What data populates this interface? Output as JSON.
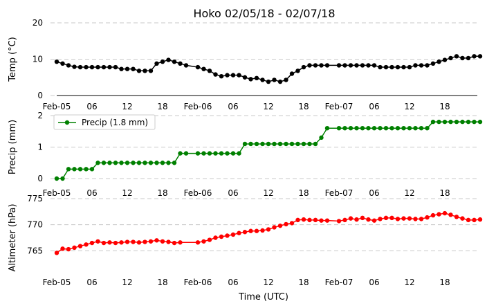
{
  "chart_data": {
    "title": "Hoko 02/05/18 - 02/07/18",
    "xlabel": "Time (UTC)",
    "x_tick_labels": [
      "Feb-05",
      "06",
      "12",
      "18",
      "Feb-06",
      "06",
      "12",
      "18",
      "Feb-07",
      "06",
      "12",
      "18"
    ],
    "panels": [
      {
        "type": "line",
        "ylabel": "Temp (°C)",
        "ylim": [
          0,
          20
        ],
        "yticks": [
          "0",
          "10",
          "20"
        ],
        "grid": true,
        "color": "#000000",
        "x_hours": [
          0,
          1,
          2,
          3,
          4,
          5,
          6,
          7,
          8,
          9,
          10,
          11,
          12,
          13,
          14,
          15,
          16,
          17,
          18,
          19,
          20,
          21,
          22,
          24,
          25,
          26,
          27,
          28,
          29,
          30,
          31,
          32,
          33,
          34,
          35,
          36,
          37,
          38,
          39,
          40,
          41,
          42,
          43,
          44,
          45,
          46,
          48,
          49,
          50,
          51,
          52,
          53,
          54,
          55,
          56,
          57,
          58,
          59,
          60,
          61,
          62,
          63,
          64,
          65,
          66,
          67,
          68,
          69,
          70,
          71,
          72
        ],
        "values": [
          9.3,
          8.8,
          8.3,
          7.9,
          7.8,
          7.8,
          7.8,
          7.8,
          7.8,
          7.8,
          7.8,
          7.3,
          7.3,
          7.3,
          6.8,
          6.8,
          6.8,
          8.8,
          9.3,
          9.8,
          9.3,
          8.8,
          8.3,
          7.8,
          7.3,
          6.8,
          5.8,
          5.3,
          5.6,
          5.6,
          5.6,
          5.0,
          4.5,
          4.8,
          4.3,
          3.8,
          4.3,
          3.8,
          4.3,
          6.0,
          6.8,
          7.8,
          8.3,
          8.3,
          8.3,
          8.3,
          8.3,
          8.3,
          8.3,
          8.3,
          8.3,
          8.3,
          8.3,
          7.8,
          7.8,
          7.8,
          7.8,
          7.8,
          7.8,
          8.3,
          8.3,
          8.3,
          8.8,
          9.3,
          9.8,
          10.3,
          10.8,
          10.3,
          10.3,
          10.8,
          10.8
        ]
      },
      {
        "type": "line",
        "ylabel": "Precip (mm)",
        "ylim": [
          0,
          2
        ],
        "yticks": [
          "0",
          "1",
          "2"
        ],
        "grid": true,
        "color": "#008000",
        "legend": "Precip (1.8 mm)",
        "legend_position": "top-left",
        "x_hours": [
          0,
          1,
          2,
          3,
          4,
          5,
          6,
          7,
          8,
          9,
          10,
          11,
          12,
          13,
          14,
          15,
          16,
          17,
          18,
          19,
          20,
          21,
          22,
          24,
          25,
          26,
          27,
          28,
          29,
          30,
          31,
          32,
          33,
          34,
          35,
          36,
          37,
          38,
          39,
          40,
          41,
          42,
          43,
          44,
          45,
          46,
          48,
          49,
          50,
          51,
          52,
          53,
          54,
          55,
          56,
          57,
          58,
          59,
          60,
          61,
          62,
          63,
          64,
          65,
          66,
          67,
          68,
          69,
          70,
          71,
          72
        ],
        "values": [
          0,
          0,
          0.3,
          0.3,
          0.3,
          0.3,
          0.3,
          0.5,
          0.5,
          0.5,
          0.5,
          0.5,
          0.5,
          0.5,
          0.5,
          0.5,
          0.5,
          0.5,
          0.5,
          0.5,
          0.5,
          0.8,
          0.8,
          0.8,
          0.8,
          0.8,
          0.8,
          0.8,
          0.8,
          0.8,
          0.8,
          1.1,
          1.1,
          1.1,
          1.1,
          1.1,
          1.1,
          1.1,
          1.1,
          1.1,
          1.1,
          1.1,
          1.1,
          1.1,
          1.3,
          1.6,
          1.6,
          1.6,
          1.6,
          1.6,
          1.6,
          1.6,
          1.6,
          1.6,
          1.6,
          1.6,
          1.6,
          1.6,
          1.6,
          1.6,
          1.6,
          1.6,
          1.8,
          1.8,
          1.8,
          1.8,
          1.8,
          1.8,
          1.8,
          1.8,
          1.8
        ]
      },
      {
        "type": "line",
        "ylabel": "Altimeter (hPa)",
        "ylim": [
          760,
          775
        ],
        "yticks": [
          "765",
          "770",
          "775"
        ],
        "grid": true,
        "color": "#ff0000",
        "x_hours": [
          0,
          1,
          2,
          3,
          4,
          5,
          6,
          7,
          8,
          9,
          10,
          11,
          12,
          13,
          14,
          15,
          16,
          17,
          18,
          19,
          20,
          21,
          24,
          25,
          26,
          27,
          28,
          29,
          30,
          31,
          32,
          33,
          34,
          35,
          36,
          37,
          38,
          39,
          40,
          41,
          42,
          43,
          44,
          45,
          46,
          48,
          49,
          50,
          51,
          52,
          53,
          54,
          55,
          56,
          57,
          58,
          59,
          60,
          61,
          62,
          63,
          64,
          65,
          66,
          67,
          68,
          69,
          70,
          71,
          72
        ],
        "values": [
          764.6,
          765.4,
          765.3,
          765.6,
          765.9,
          766.2,
          766.5,
          766.8,
          766.5,
          766.6,
          766.5,
          766.6,
          766.7,
          766.7,
          766.6,
          766.7,
          766.8,
          767.0,
          766.8,
          766.7,
          766.5,
          766.6,
          766.6,
          766.8,
          767.1,
          767.5,
          767.7,
          767.9,
          768.1,
          768.4,
          768.6,
          768.8,
          768.8,
          768.9,
          769.1,
          769.5,
          769.8,
          770.1,
          770.3,
          770.9,
          771.0,
          770.9,
          770.9,
          770.8,
          770.8,
          770.7,
          770.9,
          771.2,
          771.0,
          771.3,
          771.0,
          770.8,
          771.1,
          771.3,
          771.3,
          771.1,
          771.2,
          771.2,
          771.1,
          771.1,
          771.4,
          771.8,
          772.0,
          772.2,
          771.9,
          771.5,
          771.2,
          770.9,
          770.9,
          771.0
        ]
      }
    ]
  }
}
